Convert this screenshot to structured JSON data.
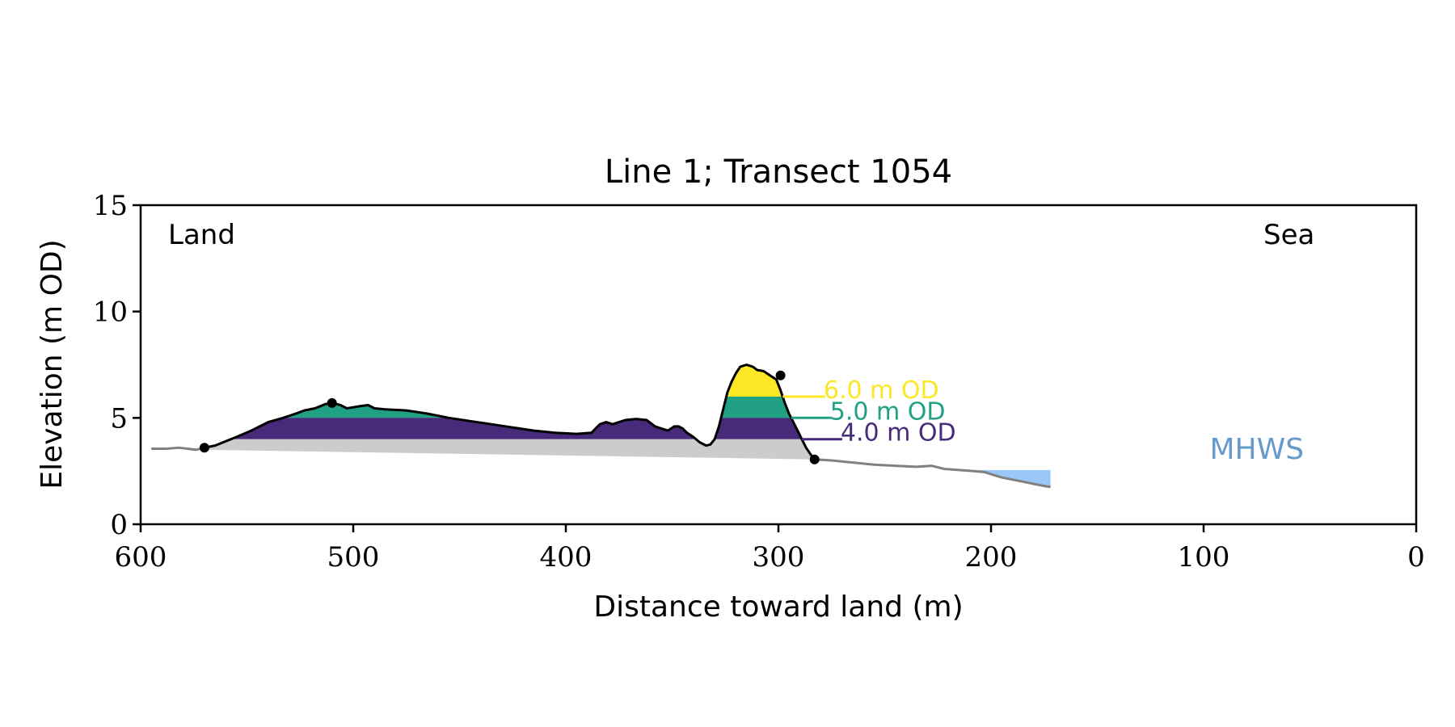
{
  "chart_data": {
    "type": "area",
    "title": "Line 1; Transect 1054",
    "xlabel": "Distance toward land (m)",
    "ylabel": "Elevation (m OD)",
    "xlim": [
      600,
      0
    ],
    "ylim": [
      0,
      15
    ],
    "x_ticks": [
      600,
      500,
      400,
      300,
      200,
      100,
      0
    ],
    "y_ticks": [
      0,
      5,
      10,
      15
    ],
    "grid": false,
    "corner_labels": {
      "left": "Land",
      "right": "Sea"
    },
    "colors": {
      "dune_fill": "#cccccc",
      "profile_line": "#000000",
      "beach_line": "#808080",
      "sea_fill": "#99c8f6",
      "mhws_text": "#6699cc",
      "level_6": "#fde725",
      "level_5": "#21a085",
      "level_4": "#472a7a"
    },
    "profile": {
      "x": [
        570,
        565,
        560,
        555,
        548,
        540,
        533,
        527,
        523,
        518,
        513,
        510,
        506,
        503,
        500,
        497,
        493,
        490,
        485,
        475,
        465,
        455,
        445,
        435,
        425,
        415,
        405,
        395,
        388,
        384,
        381,
        378,
        372,
        367,
        362,
        358,
        355,
        352,
        349,
        347,
        345,
        343,
        340,
        337,
        334,
        332,
        330,
        328,
        326,
        324,
        322,
        320,
        318,
        315,
        312,
        310,
        307,
        304,
        301,
        299,
        297,
        295,
        293,
        291,
        289,
        287,
        285,
        283
      ],
      "y": [
        3.6,
        3.7,
        3.9,
        4.1,
        4.4,
        4.8,
        5.0,
        5.2,
        5.35,
        5.45,
        5.65,
        5.7,
        5.6,
        5.45,
        5.5,
        5.55,
        5.6,
        5.45,
        5.4,
        5.35,
        5.2,
        5.0,
        4.85,
        4.7,
        4.55,
        4.4,
        4.3,
        4.25,
        4.3,
        4.7,
        4.8,
        4.7,
        4.9,
        4.95,
        4.9,
        4.6,
        4.5,
        4.4,
        4.6,
        4.6,
        4.5,
        4.3,
        4.1,
        3.85,
        3.7,
        3.75,
        4.0,
        4.6,
        5.4,
        6.2,
        6.7,
        7.1,
        7.4,
        7.5,
        7.4,
        7.25,
        7.2,
        7.0,
        6.8,
        6.3,
        5.7,
        5.2,
        4.8,
        4.4,
        4.0,
        3.6,
        3.3,
        3.05
      ]
    },
    "dune_base": {
      "x": [
        570,
        283
      ],
      "y": [
        3.5,
        3.05
      ]
    },
    "markers": [
      {
        "x": 570,
        "y": 3.6
      },
      {
        "x": 510,
        "y": 5.7
      },
      {
        "x": 299,
        "y": 7.0
      },
      {
        "x": 283,
        "y": 3.05
      }
    ],
    "beach_landward": {
      "x": [
        595,
        588,
        582,
        578,
        574,
        570
      ],
      "y": [
        3.55,
        3.55,
        3.6,
        3.55,
        3.5,
        3.6
      ]
    },
    "beach_seaward": {
      "x": [
        283,
        275,
        265,
        255,
        245,
        235,
        228,
        222,
        215,
        208,
        203,
        200,
        195,
        190,
        185,
        180,
        175,
        172
      ],
      "y": [
        3.05,
        3.0,
        2.9,
        2.8,
        2.75,
        2.7,
        2.75,
        2.6,
        2.55,
        2.5,
        2.45,
        2.35,
        2.2,
        2.1,
        2.0,
        1.9,
        1.8,
        1.75
      ]
    },
    "mhws": {
      "level": 2.55,
      "label": "MHWS"
    },
    "levels": [
      {
        "label": "6.0 m OD",
        "from": 6.0,
        "to": 7.45,
        "x_end": 278
      },
      {
        "label": "5.0 m OD",
        "from": 5.0,
        "to": 6.0,
        "x_end": 275
      },
      {
        "label": "4.0 m OD",
        "from": 4.0,
        "to": 5.0,
        "x_end": 270
      }
    ]
  }
}
